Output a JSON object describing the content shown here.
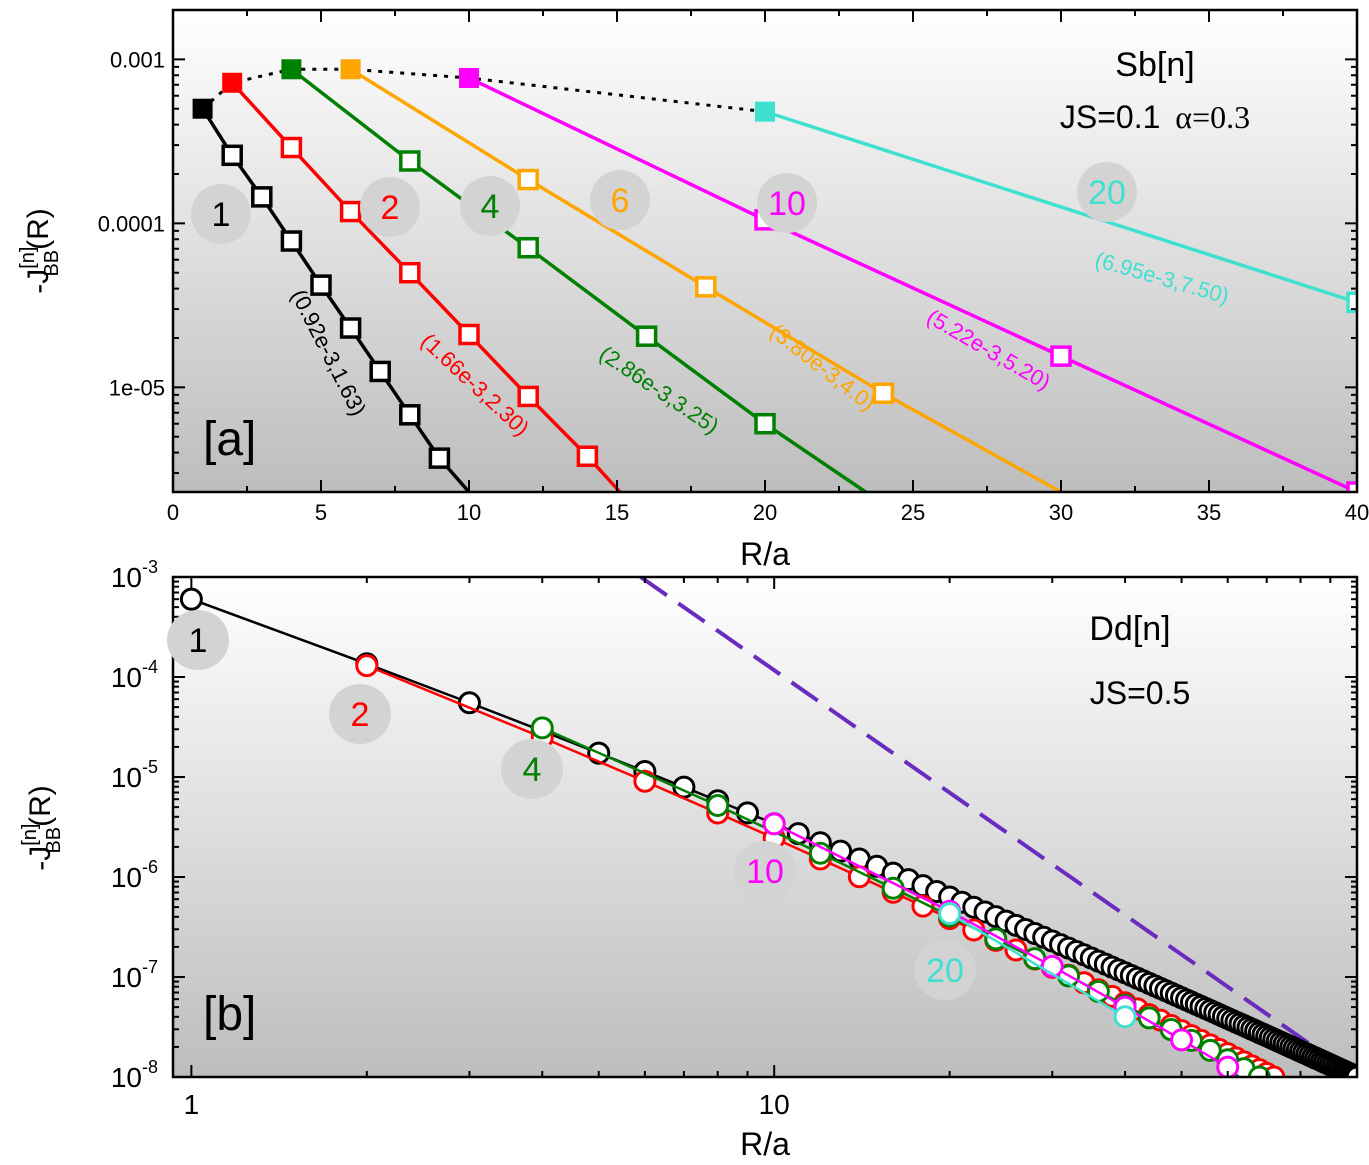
{
  "chart_data": [
    {
      "id": "a",
      "type": "line",
      "panel_label": "[a]",
      "xscale": "linear",
      "yscale": "log",
      "xlim": [
        0,
        40
      ],
      "ylim": [
        2.3e-06,
        0.002
      ],
      "xticks": [
        0,
        5,
        10,
        15,
        20,
        25,
        30,
        35,
        40
      ],
      "xtick_labels": [
        "0",
        "5",
        "10",
        "15",
        "20",
        "25",
        "30",
        "35",
        "40"
      ],
      "yticks": [
        0.001,
        0.0001,
        1e-05
      ],
      "ytick_labels": [
        "0.001",
        "0.0001",
        "1e-05"
      ],
      "xlabel": "R/a",
      "ylabel": {
        "prefix": "-J",
        "sup": "[n]",
        "sub": "BB",
        "suffix": "(R)"
      },
      "annotations": [
        "Sb[n]",
        "JS=0.1",
        "α=0.3"
      ],
      "envelope": {
        "style": "dotted",
        "color": "#000000",
        "x": [
          1,
          2,
          4,
          6,
          10,
          20
        ],
        "y": [
          0.0005,
          0.00072,
          0.00087,
          0.00087,
          0.00077,
          0.00048
        ]
      },
      "series": [
        {
          "name": "1",
          "color": "#000000",
          "fit_label": "(0.92e-3,1.63)",
          "x": [
            1,
            2,
            3,
            4,
            5,
            6,
            7,
            8,
            9
          ],
          "y": [
            0.0005,
            0.00026,
            0.000145,
            7.8e-05,
            4.2e-05,
            2.3e-05,
            1.25e-05,
            6.8e-06,
            3.7e-06
          ],
          "line_end": [
            10,
            2.3e-06
          ]
        },
        {
          "name": "2",
          "color": "#ff0000",
          "fit_label": "(1.66e-3,2.30)",
          "x": [
            2,
            4,
            6,
            8,
            10,
            12,
            14
          ],
          "y": [
            0.00072,
            0.00029,
            0.000118,
            5e-05,
            2.1e-05,
            8.8e-06,
            3.8e-06
          ],
          "line_end": [
            15.1,
            2.3e-06
          ]
        },
        {
          "name": "4",
          "color": "#008000",
          "fit_label": "(2.86e-3,3.25)",
          "x": [
            4,
            8,
            12,
            16,
            20
          ],
          "y": [
            0.00087,
            0.00024,
            7.1e-05,
            2.05e-05,
            6e-06
          ],
          "line_end": [
            23.4,
            2.3e-06
          ]
        },
        {
          "name": "6",
          "color": "#ffa500",
          "fit_label": "(3.80e-3,4.0)",
          "x": [
            6,
            12,
            18,
            24
          ],
          "y": [
            0.00087,
            0.000185,
            4.1e-05,
            9.2e-06
          ],
          "line_end": [
            30,
            2.3e-06
          ]
        },
        {
          "name": "10",
          "color": "#ff00ff",
          "fit_label": "(5.22e-3,5.20)",
          "x": [
            10,
            20,
            30,
            40
          ],
          "y": [
            0.00077,
            0.000105,
            1.55e-05,
            2.3e-06
          ],
          "line_end": [
            40,
            2.3e-06
          ]
        },
        {
          "name": "20",
          "color": "#40e0d0",
          "fit_label": "(6.95e-3,7.50)",
          "x": [
            20,
            40
          ],
          "y": [
            0.00048,
            3.3e-05
          ],
          "line_end": [
            40,
            3.3e-05
          ]
        }
      ]
    },
    {
      "id": "b",
      "type": "line",
      "panel_label": "[b]",
      "xscale": "log",
      "yscale": "log",
      "xlim": [
        0.93,
        100
      ],
      "ylim": [
        1e-08,
        0.001
      ],
      "xticks": [
        1,
        10
      ],
      "xtick_labels": [
        "1",
        "10"
      ],
      "ytick_labels": [
        {
          "base": "10",
          "exp": "-3"
        },
        {
          "base": "10",
          "exp": "-4"
        },
        {
          "base": "10",
          "exp": "-5"
        },
        {
          "base": "10",
          "exp": "-6"
        },
        {
          "base": "10",
          "exp": "-7"
        },
        {
          "base": "10",
          "exp": "-8"
        }
      ],
      "xlabel": "R/a",
      "ylabel": {
        "prefix": "-J",
        "sup": "[n]",
        "sub": "BB",
        "suffix": "(R)"
      },
      "annotations": [
        "Dd[n]",
        "JS=0.5"
      ],
      "reference_line": {
        "style": "dashed",
        "color": "#6a2cbf",
        "x": [
          5.9,
          100
        ],
        "y": [
          0.001,
          1e-08
        ]
      },
      "series": [
        {
          "name": "1",
          "color": "#000000",
          "step": 1,
          "x_start": 1,
          "x_end": 100,
          "y_start": 0.0006,
          "y_end": 1e-08
        },
        {
          "name": "2",
          "color": "#ff0000",
          "step": 2,
          "x_start": 2,
          "x_end": 72,
          "y_start": 0.00013,
          "y_end": 1e-08
        },
        {
          "name": "4",
          "color": "#008000",
          "step": 4,
          "x_start": 4,
          "x_end": 68,
          "y_start": 3.1e-05,
          "y_end": 1e-08
        },
        {
          "name": "10",
          "color": "#ff00ff",
          "step": 10,
          "x_start": 10,
          "x_end": 64,
          "y_start": 3.4e-06,
          "y_end": 1e-08
        },
        {
          "name": "20",
          "color": "#40e0d0",
          "step": 20,
          "x_start": 20,
          "x_end": 40,
          "y_start": 4.3e-07,
          "y_end": 4e-08
        }
      ]
    }
  ]
}
